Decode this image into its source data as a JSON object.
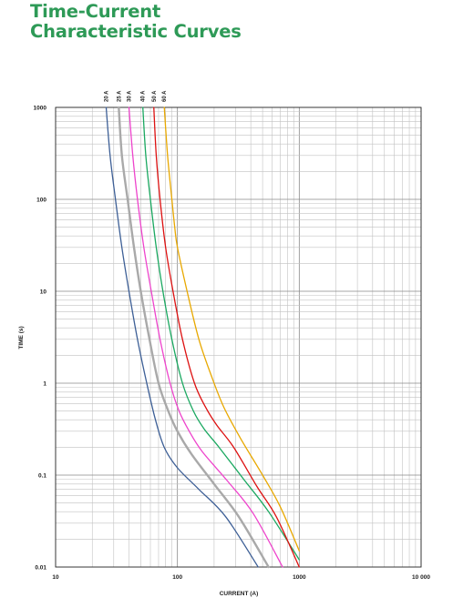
{
  "header": {
    "title_line1": "Time-Current",
    "title_line2": "Characteristic Curves"
  },
  "chart_data": {
    "type": "line",
    "title": "Time-Current Characteristic Curves",
    "xlabel": "CURRENT (A)",
    "ylabel": "TIME (s)",
    "xscale": "log",
    "yscale": "log",
    "xlim": [
      10,
      10000
    ],
    "ylim": [
      0.01,
      1000
    ],
    "x_ticks": [
      {
        "value": 10,
        "label": "10"
      },
      {
        "value": 100,
        "label": "100"
      },
      {
        "value": 1000,
        "label": "1000"
      },
      {
        "value": 10000,
        "label": "10 000"
      }
    ],
    "y_ticks": [
      {
        "value": 1000,
        "label": "1000"
      },
      {
        "value": 100,
        "label": "100"
      },
      {
        "value": 10,
        "label": "10"
      },
      {
        "value": 1,
        "label": "1"
      },
      {
        "value": 0.1,
        "label": "0.1"
      },
      {
        "value": 0.01,
        "label": "0.01"
      }
    ],
    "grid": true,
    "legend": "top, rotated labels above curves",
    "series": [
      {
        "name": "20 A",
        "color": "#3d5f96",
        "x": [
          26,
          28,
          31,
          35,
          40,
          47,
          56,
          66,
          78,
          100,
          150,
          250,
          460
        ],
        "y": [
          1000,
          300,
          100,
          30,
          10,
          3,
          1,
          0.4,
          0.2,
          0.12,
          0.07,
          0.035,
          0.01
        ]
      },
      {
        "name": "25 A",
        "color": "#a9a9a9",
        "x": [
          33,
          35,
          39,
          44,
          50,
          59,
          70,
          84,
          100,
          130,
          200,
          320,
          560
        ],
        "y": [
          1000,
          300,
          100,
          30,
          10,
          3,
          1,
          0.5,
          0.3,
          0.17,
          0.08,
          0.035,
          0.01
        ]
      },
      {
        "name": "30 A",
        "color": "#ee44cc",
        "x": [
          40,
          43,
          47,
          53,
          61,
          72,
          87,
          103,
          125,
          160,
          260,
          420,
          730
        ],
        "y": [
          1000,
          300,
          100,
          30,
          10,
          3,
          1,
          0.5,
          0.3,
          0.18,
          0.085,
          0.038,
          0.01
        ]
      },
      {
        "name": "40 A",
        "color": "#1aa860",
        "x": [
          52,
          55,
          60,
          67,
          76,
          90,
          110,
          135,
          165,
          220,
          350,
          560,
          1000
        ],
        "y": [
          1000,
          300,
          100,
          30,
          10,
          3,
          1,
          0.5,
          0.32,
          0.2,
          0.09,
          0.04,
          0.012
        ]
      },
      {
        "name": "50 A",
        "color": "#dd1111",
        "x": [
          64,
          67,
          72,
          80,
          92,
          110,
          138,
          170,
          210,
          290,
          450,
          650,
          1000
        ],
        "y": [
          1000,
          300,
          100,
          30,
          10,
          3,
          1,
          0.55,
          0.35,
          0.2,
          0.075,
          0.035,
          0.01
        ]
      },
      {
        "name": "60 A",
        "color": "#e8a800",
        "x": [
          78,
          83,
          90,
          95,
          100,
          120,
          150,
          190,
          240,
          330,
          500,
          700,
          1000
        ],
        "y": [
          1000,
          300,
          100,
          50,
          30,
          10,
          3,
          1.2,
          0.55,
          0.25,
          0.1,
          0.045,
          0.015
        ]
      }
    ]
  }
}
